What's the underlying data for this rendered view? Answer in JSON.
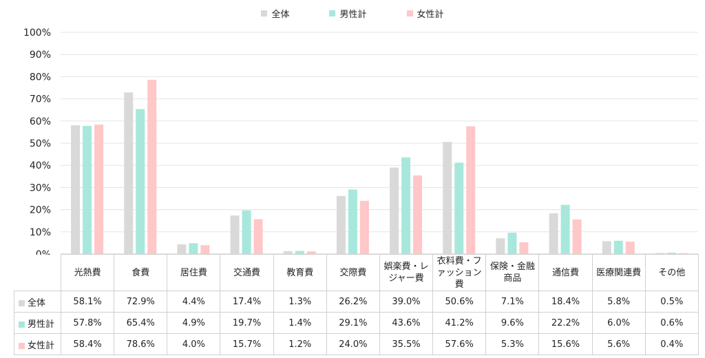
{
  "legend_labels": [
    "全体",
    "男性計",
    "女性計"
  ],
  "chart_data": {
    "type": "bar",
    "categories": [
      "光熱費",
      "食費",
      "居住費",
      "交通費",
      "教育費",
      "交際費",
      "娯楽費・レジャー費",
      "衣料費・ファッション費",
      "保険・金融商品",
      "通信費",
      "医療関連費",
      "その他"
    ],
    "series": [
      {
        "name": "全体",
        "color": "#d9d9d9",
        "values": [
          58.1,
          72.9,
          4.4,
          17.4,
          1.3,
          26.2,
          39.0,
          50.6,
          7.1,
          18.4,
          5.8,
          0.5
        ],
        "labels": [
          "58.1%",
          "72.9%",
          "4.4%",
          "17.4%",
          "1.3%",
          "26.2%",
          "39.0%",
          "50.6%",
          "7.1%",
          "18.4%",
          "5.8%",
          "0.5%"
        ]
      },
      {
        "name": "男性計",
        "color": "#a8e8dc",
        "values": [
          57.8,
          65.4,
          4.9,
          19.7,
          1.4,
          29.1,
          43.6,
          41.2,
          9.6,
          22.2,
          6.0,
          0.6
        ],
        "labels": [
          "57.8%",
          "65.4%",
          "4.9%",
          "19.7%",
          "1.4%",
          "29.1%",
          "43.6%",
          "41.2%",
          "9.6%",
          "22.2%",
          "6.0%",
          "0.6%"
        ]
      },
      {
        "name": "女性計",
        "color": "#ffc7c7",
        "values": [
          58.4,
          78.6,
          4.0,
          15.7,
          1.2,
          24.0,
          35.5,
          57.6,
          5.3,
          15.6,
          5.6,
          0.4
        ],
        "labels": [
          "58.4%",
          "78.6%",
          "4.0%",
          "15.7%",
          "1.2%",
          "24.0%",
          "35.5%",
          "57.6%",
          "5.3%",
          "15.6%",
          "5.6%",
          "0.4%"
        ]
      }
    ],
    "ylim": [
      0,
      100
    ],
    "yticks": [
      "0%",
      "10%",
      "20%",
      "30%",
      "40%",
      "50%",
      "60%",
      "70%",
      "80%",
      "90%",
      "100%"
    ],
    "grid": true,
    "legend_position": "top-center",
    "data_table": true
  }
}
